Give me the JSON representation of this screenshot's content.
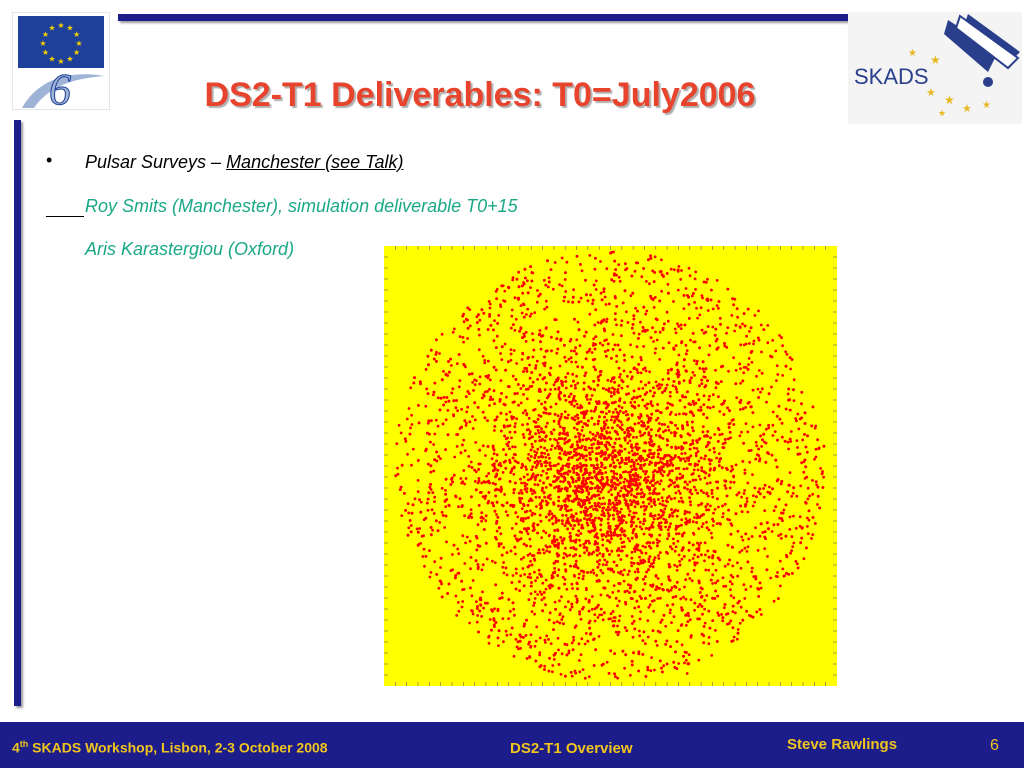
{
  "slide": {
    "title": "DS2-T1 Deliverables: T0=July2006",
    "bullet_marker": "•",
    "line1_prefix": "Pulsar Surveys – ",
    "line1_link": "Manchester (see Talk)",
    "line2": "Roy Smits (Manchester), simulation deliverable T0+15",
    "line3": "Aris Karastergiou (Oxford)"
  },
  "logos": {
    "left": "eu-fp6-logo",
    "right_text": "SKADS"
  },
  "footer": {
    "left_sup": "th",
    "left_num": "4",
    "left_rest": " SKADS Workshop, Lisbon, 2-3 October 2008",
    "center": "DS2-T1 Overview",
    "author": "Steve Rawlings",
    "page": "6"
  },
  "colors": {
    "title": "#e8432c",
    "accent_text": "#1aa886",
    "navy": "#1c1c8a",
    "footer_text": "#f0c51e",
    "plot_bg": "#ffff00",
    "points": "#ff0000"
  },
  "chart_data": {
    "type": "scatter",
    "description_points": "simulated pulsar positions, circular distribution concentrated at centre",
    "point_count": 6000,
    "distribution": "radial, dense core"
  }
}
